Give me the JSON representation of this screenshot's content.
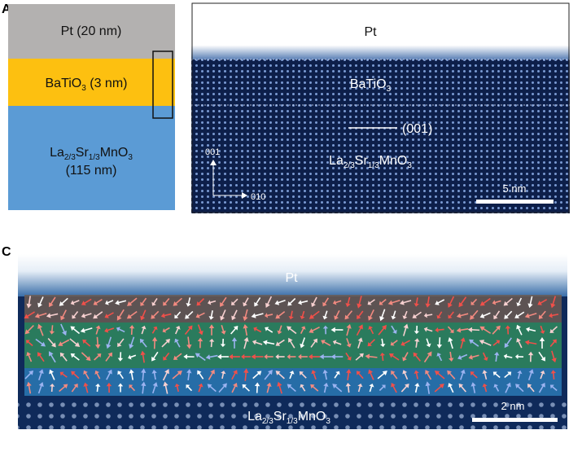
{
  "panel_a": {
    "label": "A",
    "schematic": {
      "pt": "Pt (20 nm)",
      "bto": [
        "BaTiO",
        "3",
        " (3 nm)"
      ],
      "lsmo": [
        "La",
        "2/3",
        "Sr",
        "1/3",
        "MnO",
        "3"
      ],
      "lsmo_thickness": "(115 nm)"
    },
    "image": {
      "pt": "Pt",
      "bto": [
        "BaTiO",
        "3"
      ],
      "direction": "(001)",
      "lsmo": [
        "La",
        "2/3",
        "Sr",
        "1/3",
        "MnO",
        "3"
      ],
      "axis_up": "001",
      "axis_right": "010",
      "scale": "5 nm"
    }
  },
  "panel_c": {
    "label": "C",
    "pt": "Pt",
    "lsmo": [
      "La",
      "2/3",
      "Sr",
      "1/3",
      "MnO",
      "3"
    ],
    "scale": "2 nm"
  }
}
